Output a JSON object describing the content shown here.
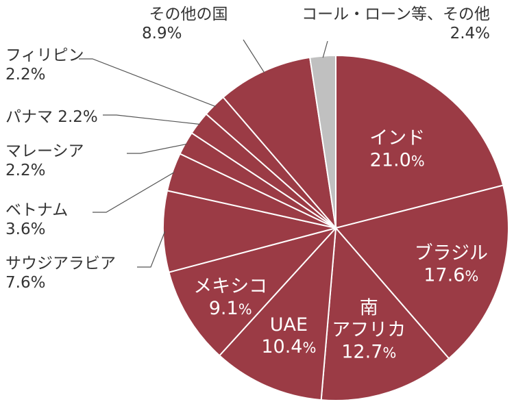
{
  "chart_data": {
    "type": "pie",
    "slices": [
      {
        "name": "インド",
        "value": 21.0,
        "value_label": "21.0",
        "color": "#9b3b45",
        "placement": "inside"
      },
      {
        "name": "ブラジル",
        "value": 17.6,
        "value_label": "17.6",
        "color": "#9b3b45",
        "placement": "inside"
      },
      {
        "name": "南",
        "name2": "アフリカ",
        "value": 12.7,
        "value_label": "12.7",
        "color": "#9b3b45",
        "placement": "inside"
      },
      {
        "name": "UAE",
        "value": 10.4,
        "value_label": "10.4",
        "color": "#9b3b45",
        "placement": "inside"
      },
      {
        "name": "メキシコ",
        "value": 9.1,
        "value_label": "9.1",
        "color": "#9b3b45",
        "placement": "inside"
      },
      {
        "name": "サウジアラビア",
        "value": 7.6,
        "value_label": "7.6%",
        "color": "#9b3b45",
        "placement": "outside"
      },
      {
        "name": "ベトナム",
        "value": 3.6,
        "value_label": "3.6%",
        "color": "#9b3b45",
        "placement": "outside"
      },
      {
        "name": "マレーシア",
        "value": 2.2,
        "value_label": "2.2%",
        "color": "#9b3b45",
        "placement": "outside"
      },
      {
        "name": "パナマ",
        "value": 2.2,
        "value_label": "2.2%",
        "color": "#9b3b45",
        "placement": "outside"
      },
      {
        "name": "フィリピン",
        "value": 2.2,
        "value_label": "2.2%",
        "color": "#9b3b45",
        "placement": "outside"
      },
      {
        "name": "その他の国",
        "value": 8.9,
        "value_label": "8.9%",
        "color": "#9b3b45",
        "placement": "outside"
      },
      {
        "name": "コール・ローン等、その他",
        "value": 2.4,
        "value_label": "2.4%",
        "color": "#c0c0c0",
        "placement": "outside"
      }
    ],
    "percent_symbol": "%",
    "start_angle_deg": 0,
    "direction": "clockwise"
  }
}
